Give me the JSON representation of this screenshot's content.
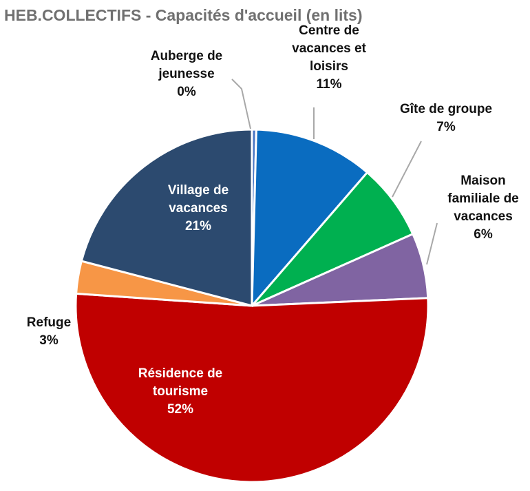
{
  "chart_data": {
    "type": "pie",
    "title": "HEB.COLLECTIFS  - Capacités d'accueil (en lits)",
    "categories": [
      "Auberge de jeunesse",
      "Centre de vacances et loisirs",
      "Gîte de groupe",
      "Maison familiale de vacances",
      "Résidence de tourisme",
      "Refuge",
      "Village de vacances"
    ],
    "values": [
      0.4,
      11,
      7,
      6,
      52,
      3,
      21
    ],
    "label_percent_text": [
      "0%",
      "11%",
      "7%",
      "6%",
      "52%",
      "3%",
      "21%"
    ],
    "slice_colors": [
      "#4a77c4",
      "#0a6cc0",
      "#00b050",
      "#8064a2",
      "#c00000",
      "#f79646",
      "#2c4a6f"
    ],
    "legend": "none"
  }
}
